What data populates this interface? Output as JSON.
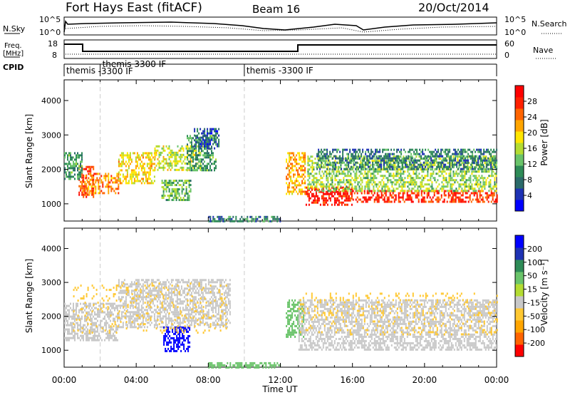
{
  "header": {
    "station": "Fort Hays East (fitACF)",
    "beam": "Beam 16",
    "date": "20/Oct/2014"
  },
  "top_panels": {
    "nsky_label": "N.Sky",
    "nsky_ticks": [
      "10^5",
      "10^0"
    ],
    "nsearch_label": "N.Search",
    "nsearch_ticks": [
      "10^5",
      "10^0"
    ],
    "freq_label": "Freq.",
    "freq_unit": "[MHz]",
    "freq_ticks": [
      "18",
      "8"
    ],
    "nave_label": "Nave",
    "nave_ticks": [
      "60",
      "0"
    ],
    "cpid_label": "CPID",
    "cpid_segments": [
      {
        "start_h": 0,
        "line1": "themis",
        "line2": ""
      },
      {
        "start_h": 2,
        "line1": "themis 3300 IF",
        "line2": "-3300 IF"
      },
      {
        "start_h": 10,
        "line1": "themis -3300 IF",
        "line2": ""
      }
    ]
  },
  "chart_data": [
    {
      "type": "heatmap",
      "ylabel": "Slant Range [km]",
      "ylim": [
        500,
        4600
      ],
      "yticks": [
        "4000",
        "3000",
        "2000",
        "1000"
      ],
      "xlim": [
        0,
        24
      ],
      "colorbar": {
        "label": "Power [dB]",
        "ticks": [
          "28",
          "24",
          "20",
          "16",
          "12",
          "8",
          "4"
        ],
        "range": [
          0,
          30
        ],
        "colors": [
          "#0000ff",
          "#1e32b4",
          "#2b6a6a",
          "#2e8b57",
          "#6ac46a",
          "#b4dc32",
          "#ffe600",
          "#ffa500",
          "#ff6400",
          "#ff2000",
          "#ff0000"
        ]
      },
      "regions": [
        {
          "x0": 0.8,
          "x1": 1.6,
          "y0": 1200,
          "y1": 2100,
          "v": 24
        },
        {
          "x0": 1.0,
          "x1": 3.0,
          "y0": 1300,
          "y1": 1900,
          "v": 22
        },
        {
          "x0": 3.0,
          "x1": 5.0,
          "y0": 1600,
          "y1": 2500,
          "v": 18
        },
        {
          "x0": 5.0,
          "x1": 7.6,
          "y0": 2000,
          "y1": 2700,
          "v": 16
        },
        {
          "x0": 6.8,
          "x1": 8.4,
          "y0": 2000,
          "y1": 3000,
          "v": 10
        },
        {
          "x0": 7.2,
          "x1": 8.6,
          "y0": 2600,
          "y1": 3200,
          "v": 6
        },
        {
          "x0": 5.4,
          "x1": 7.0,
          "y0": 1100,
          "y1": 1700,
          "v": 12
        },
        {
          "x0": 0.0,
          "x1": 1.0,
          "y0": 1700,
          "y1": 2500,
          "v": 10
        },
        {
          "x0": 12.3,
          "x1": 13.4,
          "y0": 1300,
          "y1": 2500,
          "v": 20
        },
        {
          "x0": 13.4,
          "x1": 16.0,
          "y0": 1000,
          "y1": 1500,
          "v": 27
        },
        {
          "x0": 16.0,
          "x1": 24.0,
          "y0": 1050,
          "y1": 1400,
          "v": 26
        },
        {
          "x0": 13.5,
          "x1": 24.0,
          "y0": 1400,
          "y1": 2400,
          "v": 14
        },
        {
          "x0": 14.0,
          "x1": 24.0,
          "y0": 2000,
          "y1": 2600,
          "v": 8
        },
        {
          "x0": 8.0,
          "x1": 12.0,
          "y0": 500,
          "y1": 650,
          "v": 8
        }
      ]
    },
    {
      "type": "heatmap",
      "ylabel": "Slant Range [km]",
      "ylim": [
        500,
        4600
      ],
      "yticks": [
        "4000",
        "3000",
        "2000",
        "1000"
      ],
      "xlim": [
        0,
        24
      ],
      "xticks": [
        "00:00",
        "04:00",
        "08:00",
        "12:00",
        "16:00",
        "20:00",
        "00:00"
      ],
      "xlabel": "Time UT",
      "colorbar": {
        "label": "Velocity [m s⁻¹]",
        "ticks": [
          "200",
          "100",
          "50",
          "15",
          "-15",
          "-50",
          "-100",
          "-200"
        ],
        "range": [
          -250,
          250
        ],
        "colors": [
          "#ff0000",
          "#ff6400",
          "#ffa500",
          "#ffc832",
          "#c8c8c8",
          "#b4dc32",
          "#6ac46a",
          "#2e8b57",
          "#1e32b4",
          "#0000ff"
        ]
      },
      "regions": [
        {
          "x0": 0.0,
          "x1": 3.0,
          "y0": 1300,
          "y1": 2400,
          "v": 0,
          "gray": true
        },
        {
          "x0": 3.0,
          "x1": 9.2,
          "y0": 1700,
          "y1": 3100,
          "v": 0,
          "gray": true
        },
        {
          "x0": 5.5,
          "x1": 7.0,
          "y0": 1000,
          "y1": 1700,
          "v": 220
        },
        {
          "x0": 12.3,
          "x1": 13.3,
          "y0": 1400,
          "y1": 2500,
          "v": 70
        },
        {
          "x0": 13.0,
          "x1": 24.0,
          "y0": 1000,
          "y1": 2500,
          "v": 0,
          "gray": true
        },
        {
          "x0": 0.5,
          "x1": 9.0,
          "y0": 1500,
          "y1": 3000,
          "v": -60,
          "sparse": true
        },
        {
          "x0": 13.0,
          "x1": 24.0,
          "y0": 1500,
          "y1": 2700,
          "v": -60,
          "sparse": true
        },
        {
          "x0": 8.0,
          "x1": 12.0,
          "y0": 500,
          "y1": 650,
          "v": 60
        }
      ]
    }
  ]
}
